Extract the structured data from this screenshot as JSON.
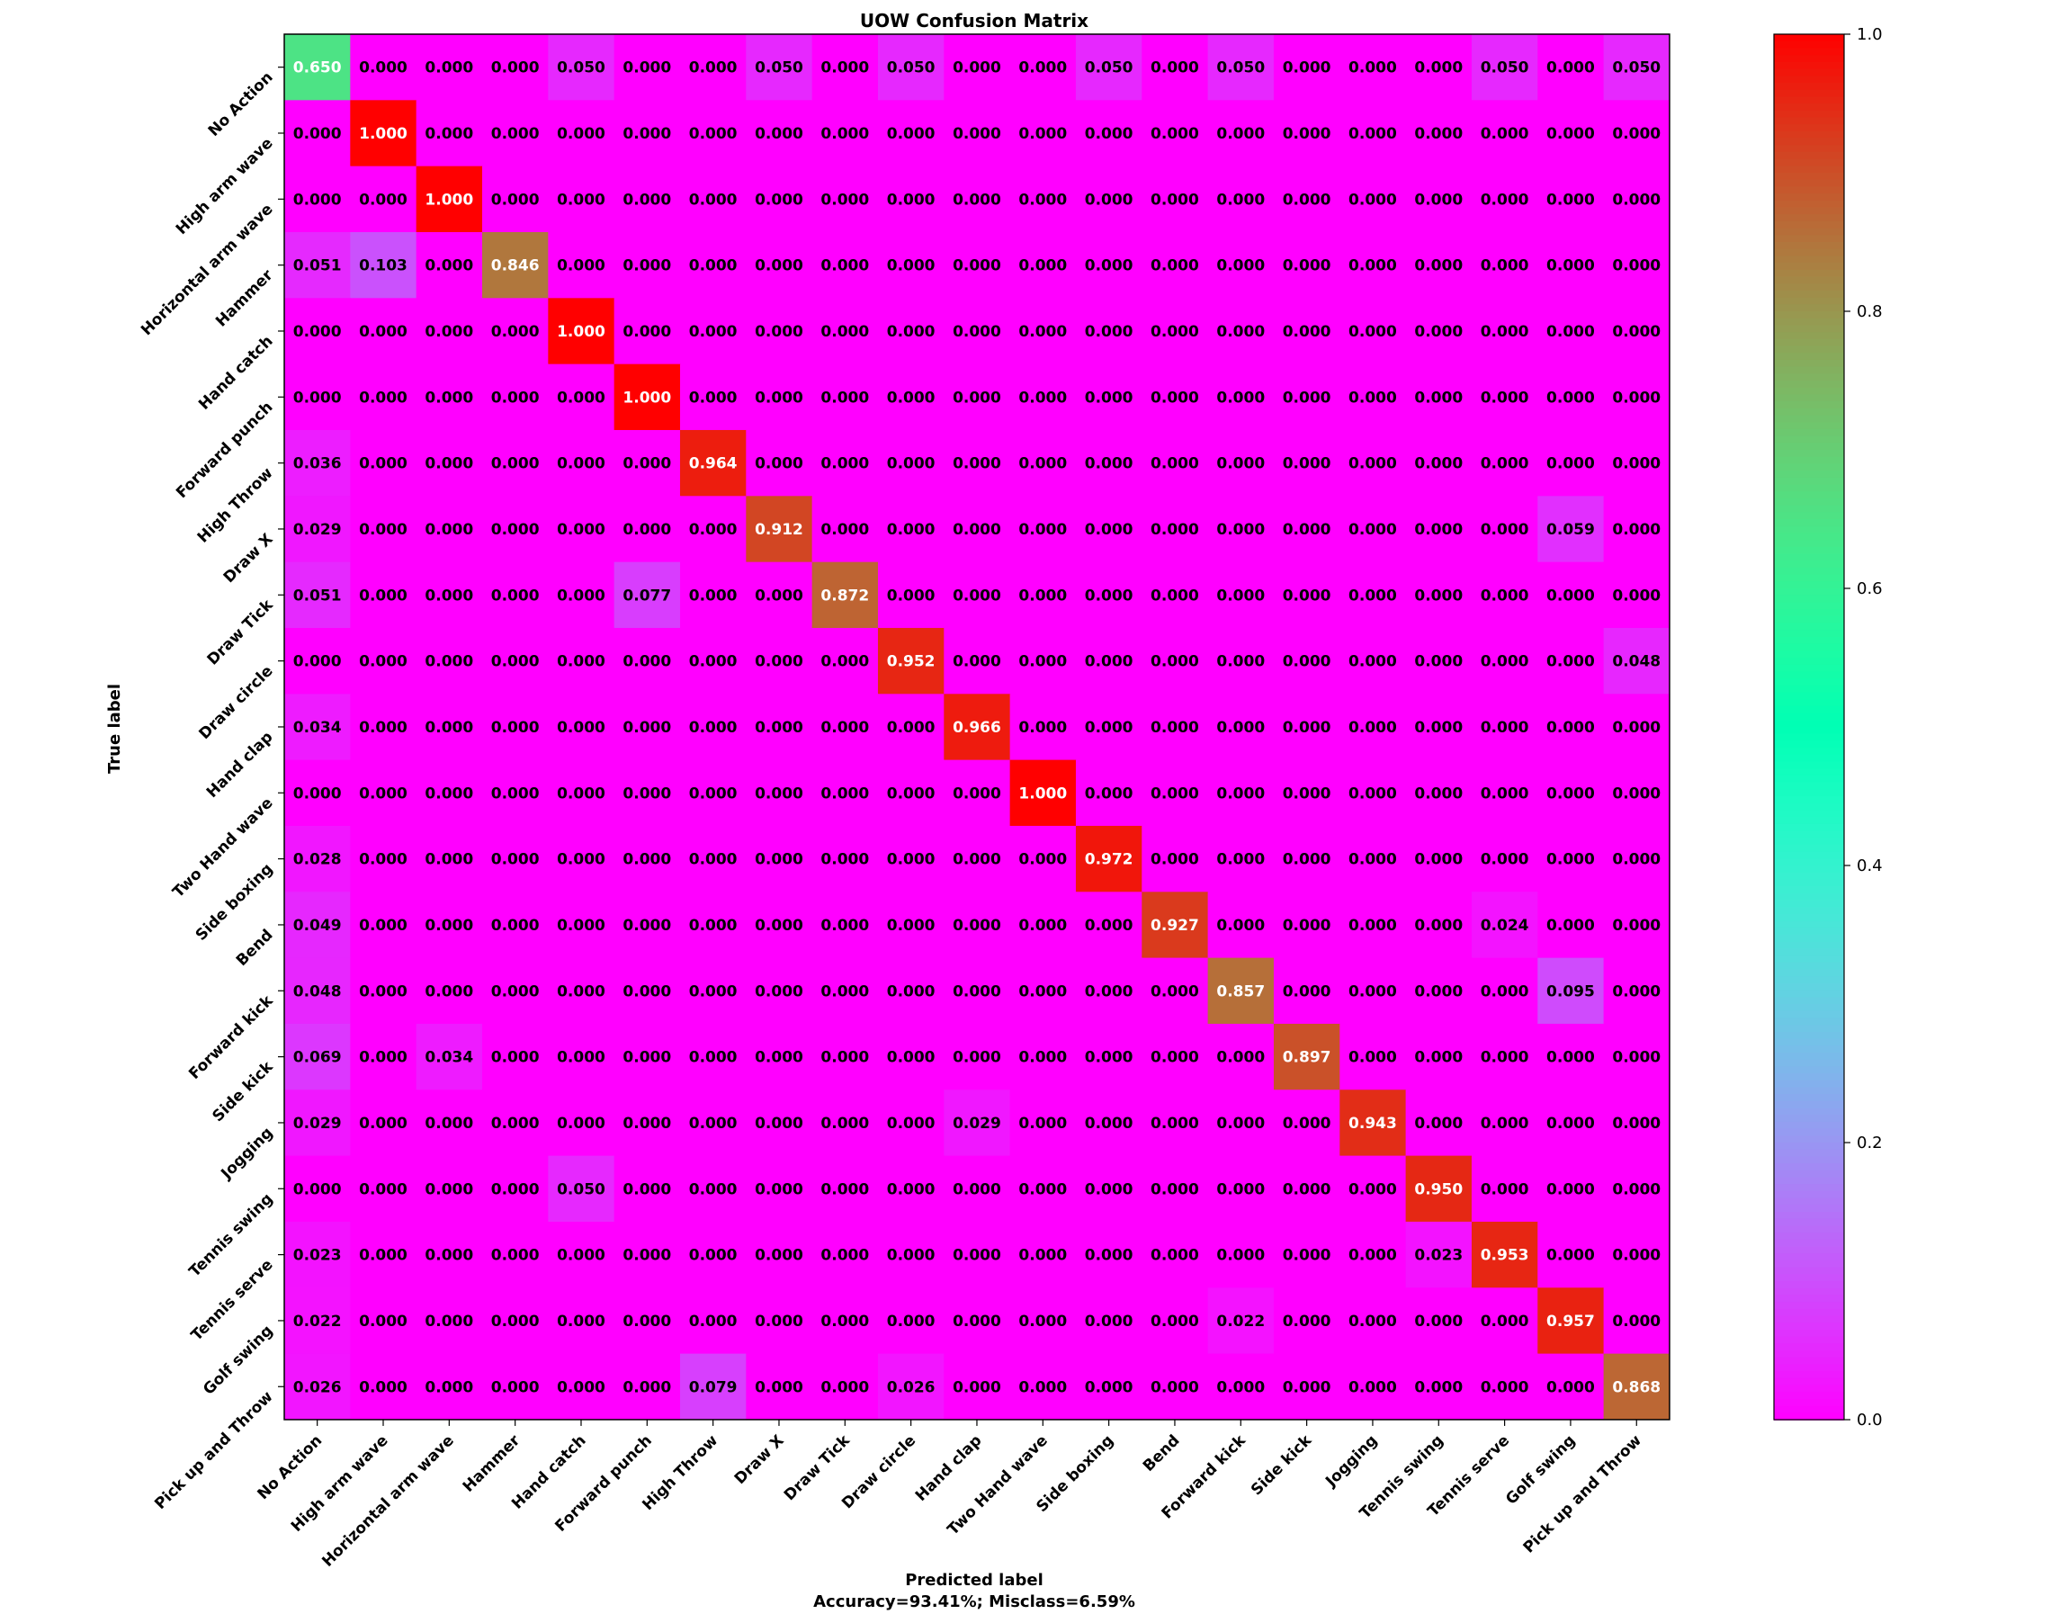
{
  "chart_data": {
    "type": "heatmap",
    "title": "UOW Confusion Matrix",
    "xlabel": "Predicted label",
    "xlabel_sub": "Accuracy=93.41%; Misclass=6.59%",
    "ylabel": "True label",
    "labels": [
      "No Action",
      "High arm wave",
      "Horizontal arm wave",
      "Hammer",
      "Hand catch",
      "Forward punch",
      "High Throw",
      "Draw X",
      "Draw Tick",
      "Draw circle",
      "Hand clap",
      "Two Hand wave",
      "Side boxing",
      "Bend",
      "Forward kick",
      "Side kick",
      "Jogging",
      "Tennis swing",
      "Tennis serve",
      "Golf swing",
      "Pick up and Throw"
    ],
    "matrix": [
      [
        0.65,
        0,
        0,
        0,
        0.05,
        0,
        0,
        0.05,
        0,
        0.05,
        0,
        0,
        0.05,
        0,
        0.05,
        0,
        0,
        0,
        0.05,
        0,
        0.05
      ],
      [
        0,
        1.0,
        0,
        0,
        0,
        0,
        0,
        0,
        0,
        0,
        0,
        0,
        0,
        0,
        0,
        0,
        0,
        0,
        0,
        0,
        0
      ],
      [
        0,
        0,
        1.0,
        0,
        0,
        0,
        0,
        0,
        0,
        0,
        0,
        0,
        0,
        0,
        0,
        0,
        0,
        0,
        0,
        0,
        0
      ],
      [
        0.051,
        0.103,
        0,
        0.846,
        0,
        0,
        0,
        0,
        0,
        0,
        0,
        0,
        0,
        0,
        0,
        0,
        0,
        0,
        0,
        0,
        0
      ],
      [
        0,
        0,
        0,
        0,
        1.0,
        0,
        0,
        0,
        0,
        0,
        0,
        0,
        0,
        0,
        0,
        0,
        0,
        0,
        0,
        0,
        0
      ],
      [
        0,
        0,
        0,
        0,
        0,
        1.0,
        0,
        0,
        0,
        0,
        0,
        0,
        0,
        0,
        0,
        0,
        0,
        0,
        0,
        0,
        0
      ],
      [
        0.036,
        0,
        0,
        0,
        0,
        0,
        0.964,
        0,
        0,
        0,
        0,
        0,
        0,
        0,
        0,
        0,
        0,
        0,
        0,
        0,
        0
      ],
      [
        0.029,
        0,
        0,
        0,
        0,
        0,
        0,
        0.912,
        0,
        0,
        0,
        0,
        0,
        0,
        0,
        0,
        0,
        0,
        0,
        0.059,
        0
      ],
      [
        0.051,
        0,
        0,
        0,
        0,
        0.077,
        0,
        0,
        0.872,
        0,
        0,
        0,
        0,
        0,
        0,
        0,
        0,
        0,
        0,
        0,
        0
      ],
      [
        0,
        0,
        0,
        0,
        0,
        0,
        0,
        0,
        0,
        0.952,
        0,
        0,
        0,
        0,
        0,
        0,
        0,
        0,
        0,
        0,
        0.048
      ],
      [
        0.034,
        0,
        0,
        0,
        0,
        0,
        0,
        0,
        0,
        0,
        0.966,
        0,
        0,
        0,
        0,
        0,
        0,
        0,
        0,
        0,
        0
      ],
      [
        0,
        0,
        0,
        0,
        0,
        0,
        0,
        0,
        0,
        0,
        0,
        1.0,
        0,
        0,
        0,
        0,
        0,
        0,
        0,
        0,
        0
      ],
      [
        0.028,
        0,
        0,
        0,
        0,
        0,
        0,
        0,
        0,
        0,
        0,
        0,
        0.972,
        0,
        0,
        0,
        0,
        0,
        0,
        0,
        0
      ],
      [
        0.049,
        0,
        0,
        0,
        0,
        0,
        0,
        0,
        0,
        0,
        0,
        0,
        0,
        0.927,
        0,
        0,
        0,
        0,
        0.024,
        0,
        0
      ],
      [
        0.048,
        0,
        0,
        0,
        0,
        0,
        0,
        0,
        0,
        0,
        0,
        0,
        0,
        0,
        0.857,
        0,
        0,
        0,
        0,
        0.095,
        0
      ],
      [
        0.069,
        0,
        0.034,
        0,
        0,
        0,
        0,
        0,
        0,
        0,
        0,
        0,
        0,
        0,
        0,
        0.897,
        0,
        0,
        0,
        0,
        0
      ],
      [
        0.029,
        0,
        0,
        0,
        0,
        0,
        0,
        0,
        0,
        0,
        0.029,
        0,
        0,
        0,
        0,
        0,
        0.943,
        0,
        0,
        0,
        0
      ],
      [
        0,
        0,
        0,
        0,
        0.05,
        0,
        0,
        0,
        0,
        0,
        0,
        0,
        0,
        0,
        0,
        0,
        0,
        0.95,
        0,
        0,
        0
      ],
      [
        0.023,
        0,
        0,
        0,
        0,
        0,
        0,
        0,
        0,
        0,
        0,
        0,
        0,
        0,
        0,
        0,
        0,
        0.023,
        0.953,
        0,
        0
      ],
      [
        0.022,
        0,
        0,
        0,
        0,
        0,
        0,
        0,
        0,
        0,
        0,
        0,
        0,
        0,
        0.022,
        0,
        0,
        0,
        0,
        0.957,
        0
      ],
      [
        0.026,
        0,
        0,
        0,
        0,
        0,
        0.079,
        0,
        0,
        0.026,
        0,
        0,
        0,
        0,
        0,
        0,
        0,
        0,
        0,
        0,
        0.868
      ]
    ],
    "value_format": "0.000",
    "colormap": "rainbow",
    "colorbar": {
      "range": [
        0,
        1
      ],
      "ticks": [
        0.0,
        0.2,
        0.4,
        0.6,
        0.8,
        1.0
      ],
      "tick_labels": [
        "0.0",
        "0.2",
        "0.4",
        "0.6",
        "0.8",
        "1.0"
      ]
    },
    "text_colors": {
      "light": "#ffffff",
      "dark": "#000000"
    }
  }
}
